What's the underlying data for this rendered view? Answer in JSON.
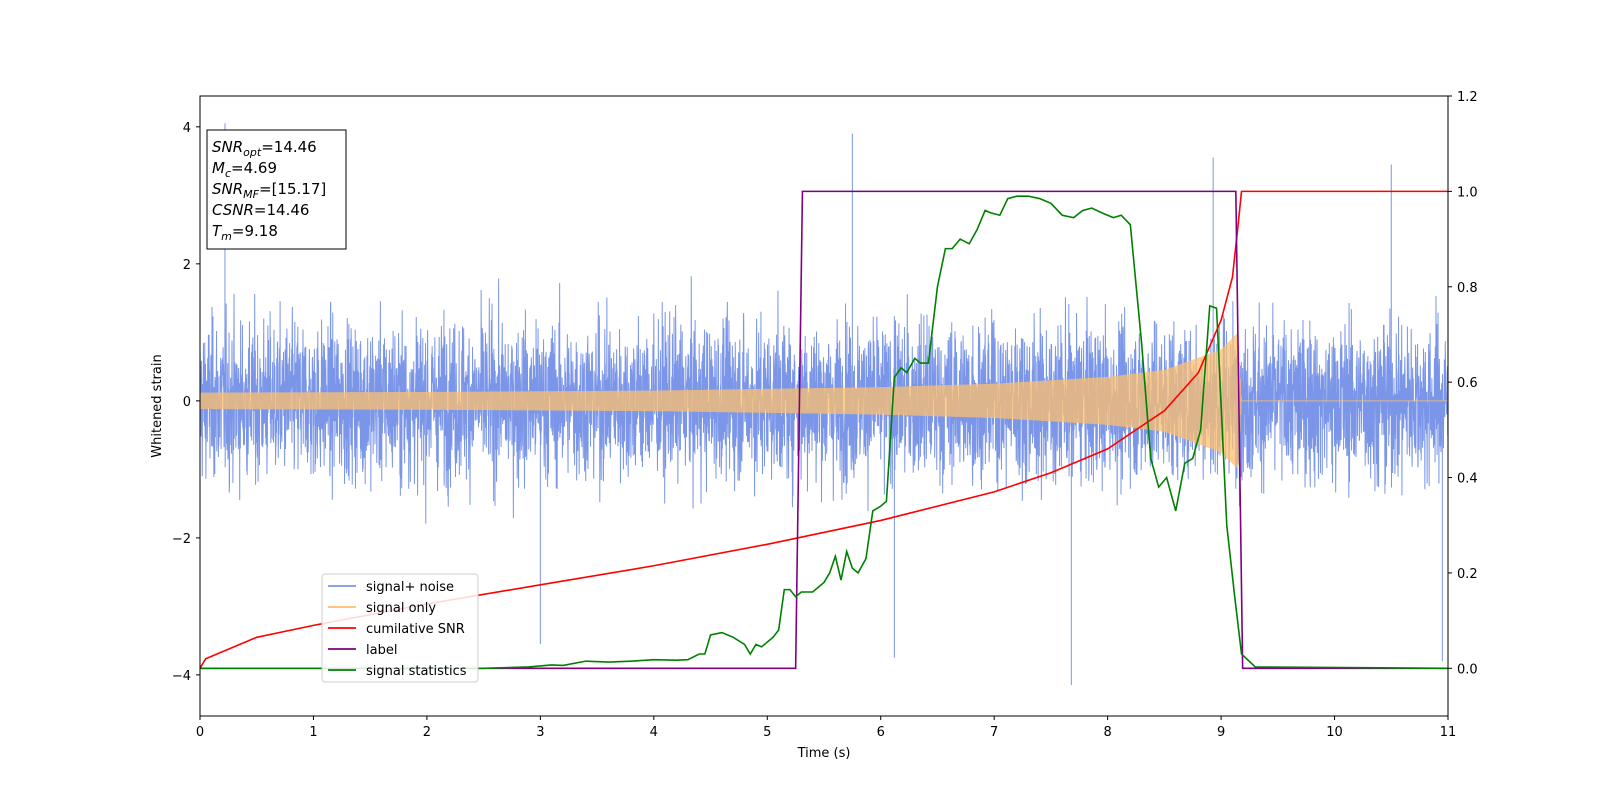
{
  "chart_data": {
    "type": "line",
    "xlabel": "Time (s)",
    "ylabel": "Whitened strain",
    "xlim": [
      0,
      11
    ],
    "ylim_left": [
      -4.6,
      4.45
    ],
    "ylim_right": [
      -0.1,
      1.2
    ],
    "x_ticks": [
      "0",
      "1",
      "2",
      "3",
      "4",
      "5",
      "6",
      "7",
      "8",
      "9",
      "10",
      "11"
    ],
    "y_left_ticks": [
      "−4",
      "−2",
      "0",
      "2",
      "4"
    ],
    "y_right_ticks": [
      "0.0",
      "0.2",
      "0.4",
      "0.6",
      "0.8",
      "1.0",
      "1.2"
    ],
    "legend_position": "lower-left",
    "annotation": {
      "lines": [
        {
          "sym": "SNR",
          "sub": "opt",
          "val": "=14.46"
        },
        {
          "sym": "M",
          "sub": "c",
          "val": "=4.69"
        },
        {
          "sym": "SNR",
          "sub": "MF",
          "val": "=[15.17]"
        },
        {
          "sym": "CSNR",
          "sub": "",
          "val": "=14.46"
        },
        {
          "sym": "T",
          "sub": "m",
          "val": "=9.18"
        }
      ]
    },
    "colors": {
      "noise": "#7b96e8",
      "signal": "#fdbf6f",
      "csnr": "#ff0000",
      "label": "#800080",
      "stats": "#008000"
    },
    "series": [
      {
        "name": "signal+ noise",
        "axis": "left",
        "description_kind": "noise-band",
        "typical_envelope": 2.0,
        "notable_peaks": [
          [
            0.22,
            4.05
          ],
          [
            5.75,
            3.9
          ],
          [
            7.68,
            -4.15
          ],
          [
            8.93,
            3.55
          ],
          [
            10.5,
            3.45
          ],
          [
            10.95,
            -3.8
          ],
          [
            3.0,
            -3.55
          ],
          [
            6.12,
            -3.75
          ]
        ]
      },
      {
        "name": "signal only",
        "axis": "left",
        "chirp_end": 9.18,
        "envelope": [
          [
            0,
            0.12
          ],
          [
            2,
            0.13
          ],
          [
            4,
            0.15
          ],
          [
            6,
            0.2
          ],
          [
            7,
            0.25
          ],
          [
            8,
            0.35
          ],
          [
            8.5,
            0.45
          ],
          [
            9.0,
            0.75
          ],
          [
            9.15,
            1.0
          ],
          [
            9.18,
            0.0
          ],
          [
            11,
            0.0
          ]
        ]
      },
      {
        "name": "cumilative SNR",
        "axis": "right",
        "points": [
          [
            0,
            0.0
          ],
          [
            0.05,
            0.02
          ],
          [
            0.5,
            0.065
          ],
          [
            1.0,
            0.09
          ],
          [
            2.0,
            0.135
          ],
          [
            3.0,
            0.175
          ],
          [
            4.0,
            0.215
          ],
          [
            5.0,
            0.26
          ],
          [
            6.0,
            0.31
          ],
          [
            7.0,
            0.37
          ],
          [
            7.5,
            0.41
          ],
          [
            8.0,
            0.46
          ],
          [
            8.5,
            0.54
          ],
          [
            8.8,
            0.62
          ],
          [
            9.0,
            0.73
          ],
          [
            9.1,
            0.82
          ],
          [
            9.15,
            0.93
          ],
          [
            9.18,
            1.0
          ],
          [
            11,
            1.0
          ]
        ]
      },
      {
        "name": "label",
        "axis": "right",
        "points": [
          [
            0,
            0.0
          ],
          [
            5.25,
            0.0
          ],
          [
            5.31,
            1.0
          ],
          [
            9.13,
            1.0
          ],
          [
            9.19,
            0.0
          ],
          [
            11,
            0.0
          ]
        ]
      },
      {
        "name": "signal statistics",
        "axis": "right",
        "points": [
          [
            0,
            0.0
          ],
          [
            2.5,
            0.0
          ],
          [
            2.9,
            0.003
          ],
          [
            3.0,
            0.005
          ],
          [
            3.1,
            0.007
          ],
          [
            3.2,
            0.006
          ],
          [
            3.4,
            0.015
          ],
          [
            3.6,
            0.013
          ],
          [
            3.8,
            0.015
          ],
          [
            4.0,
            0.018
          ],
          [
            4.2,
            0.017
          ],
          [
            4.3,
            0.018
          ],
          [
            4.4,
            0.03
          ],
          [
            4.45,
            0.03
          ],
          [
            4.5,
            0.07
          ],
          [
            4.6,
            0.075
          ],
          [
            4.7,
            0.065
          ],
          [
            4.8,
            0.05
          ],
          [
            4.85,
            0.03
          ],
          [
            4.9,
            0.05
          ],
          [
            4.95,
            0.045
          ],
          [
            5.05,
            0.065
          ],
          [
            5.1,
            0.08
          ],
          [
            5.15,
            0.165
          ],
          [
            5.2,
            0.165
          ],
          [
            5.25,
            0.15
          ],
          [
            5.3,
            0.16
          ],
          [
            5.4,
            0.16
          ],
          [
            5.5,
            0.18
          ],
          [
            5.55,
            0.2
          ],
          [
            5.6,
            0.235
          ],
          [
            5.65,
            0.185
          ],
          [
            5.7,
            0.245
          ],
          [
            5.75,
            0.21
          ],
          [
            5.8,
            0.2
          ],
          [
            5.87,
            0.23
          ],
          [
            5.93,
            0.33
          ],
          [
            6.0,
            0.34
          ],
          [
            6.05,
            0.35
          ],
          [
            6.12,
            0.61
          ],
          [
            6.18,
            0.63
          ],
          [
            6.23,
            0.62
          ],
          [
            6.3,
            0.65
          ],
          [
            6.35,
            0.64
          ],
          [
            6.42,
            0.64
          ],
          [
            6.5,
            0.8
          ],
          [
            6.57,
            0.88
          ],
          [
            6.63,
            0.88
          ],
          [
            6.7,
            0.9
          ],
          [
            6.78,
            0.89
          ],
          [
            6.85,
            0.92
          ],
          [
            6.92,
            0.96
          ],
          [
            6.97,
            0.955
          ],
          [
            7.05,
            0.95
          ],
          [
            7.12,
            0.985
          ],
          [
            7.2,
            0.99
          ],
          [
            7.3,
            0.99
          ],
          [
            7.4,
            0.985
          ],
          [
            7.5,
            0.975
          ],
          [
            7.6,
            0.95
          ],
          [
            7.7,
            0.945
          ],
          [
            7.78,
            0.96
          ],
          [
            7.86,
            0.965
          ],
          [
            7.95,
            0.955
          ],
          [
            8.05,
            0.945
          ],
          [
            8.12,
            0.95
          ],
          [
            8.2,
            0.93
          ],
          [
            8.3,
            0.68
          ],
          [
            8.38,
            0.44
          ],
          [
            8.45,
            0.38
          ],
          [
            8.52,
            0.4
          ],
          [
            8.6,
            0.33
          ],
          [
            8.68,
            0.43
          ],
          [
            8.75,
            0.44
          ],
          [
            8.82,
            0.5
          ],
          [
            8.9,
            0.76
          ],
          [
            8.96,
            0.755
          ],
          [
            9.05,
            0.3
          ],
          [
            9.12,
            0.15
          ],
          [
            9.18,
            0.03
          ],
          [
            9.3,
            0.003
          ],
          [
            11,
            0.0
          ]
        ]
      }
    ]
  }
}
